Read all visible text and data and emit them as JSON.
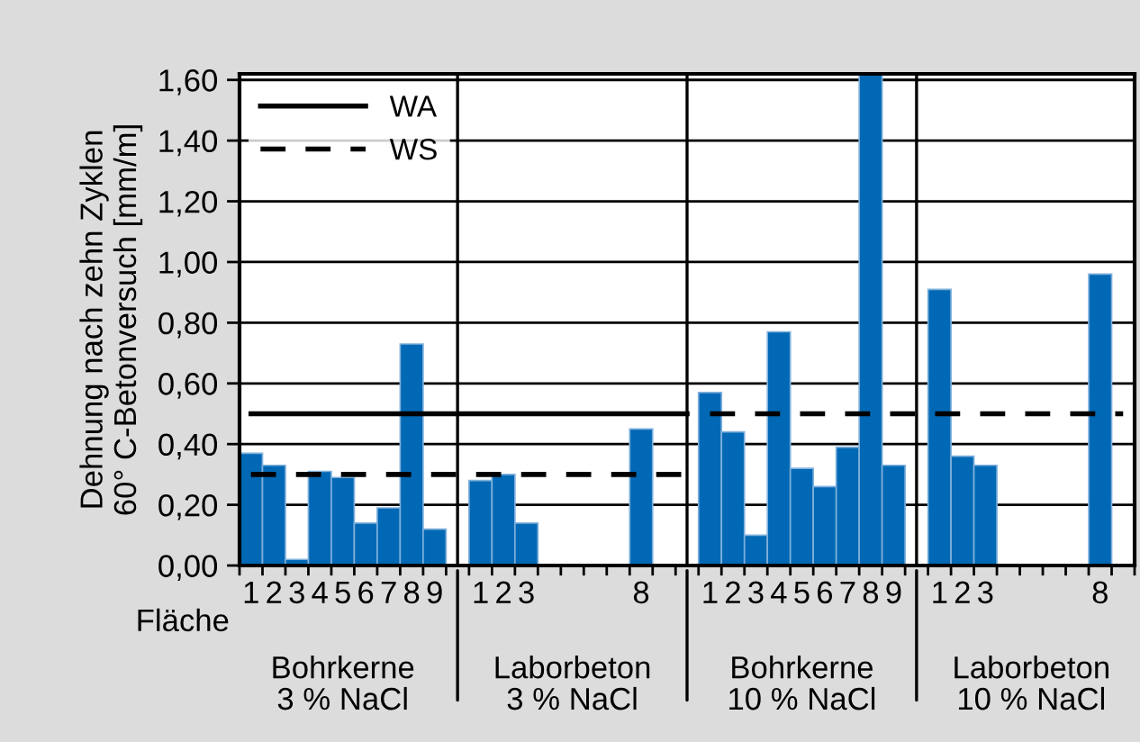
{
  "chart_data": {
    "type": "bar",
    "ylabel": "Dehnung nach zehn Zyklen\n60° C-Betonversuch [mm/m]",
    "categories": [
      "1",
      "2",
      "3",
      "4",
      "5",
      "6",
      "7",
      "8",
      "9",
      null,
      "1",
      "2",
      "3",
      null,
      null,
      null,
      null,
      "8",
      null,
      null,
      "1",
      "2",
      "3",
      "4",
      "5",
      "6",
      "7",
      "8",
      "9",
      null,
      "1",
      "2",
      "3",
      null,
      null,
      null,
      null,
      "8",
      null
    ],
    "series": [
      {
        "color": "#0068b4",
        "values": [
          0.37,
          0.33,
          0.02,
          0.31,
          0.29,
          0.14,
          0.19,
          0.73,
          0.12,
          null,
          0.28,
          0.3,
          0.14,
          null,
          null,
          null,
          null,
          0.45,
          null,
          null,
          0.57,
          0.44,
          0.1,
          0.77,
          0.32,
          0.26,
          0.39,
          1.62,
          0.33,
          null,
          0.91,
          0.36,
          0.33,
          null,
          null,
          null,
          null,
          0.96,
          null
        ]
      },
      {
        "type": "line",
        "name": "WA",
        "color": "#000000",
        "line_style": "solid",
        "values": [
          0.5,
          0.5,
          0.5,
          0.5,
          0.5,
          0.5,
          0.5,
          0.5,
          0.5,
          0.5,
          0.5,
          0.5,
          0.5,
          0.5,
          0.5,
          0.5,
          0.5,
          0.5,
          0.5,
          0.5,
          null,
          null,
          null,
          null,
          null,
          null,
          null,
          null,
          null,
          null,
          null,
          null,
          null,
          null,
          null,
          null,
          null,
          null,
          null
        ]
      },
      {
        "type": "line",
        "name": "WS",
        "color": "#000000",
        "line_style": "dashed",
        "values": [
          0.3,
          0.3,
          0.3,
          0.3,
          0.3,
          0.3,
          0.3,
          0.3,
          0.3,
          0.3,
          0.3,
          0.3,
          0.3,
          0.3,
          0.3,
          0.3,
          0.3,
          0.3,
          0.3,
          0.3,
          0.5,
          0.5,
          0.5,
          0.5,
          0.5,
          0.5,
          0.5,
          0.5,
          0.5,
          0.5,
          0.5,
          0.5,
          0.5,
          0.5,
          0.5,
          0.5,
          0.5,
          0.5,
          0.5
        ]
      }
    ],
    "ylim": [
      0,
      1.62
    ],
    "yticks": [
      {
        "value": 0,
        "label": "0,00"
      },
      {
        "value": 0.2,
        "label": "0,20"
      },
      {
        "value": 0.4,
        "label": "0,40"
      },
      {
        "value": 0.6,
        "label": "0,60"
      },
      {
        "value": 0.8,
        "label": "0,80"
      },
      {
        "value": 1.0,
        "label": "1,00"
      },
      {
        "value": 1.2,
        "label": "1,20"
      },
      {
        "value": 1.4,
        "label": "1,40"
      },
      {
        "value": 1.6,
        "label": "1,60"
      }
    ],
    "grid": "y",
    "legend": "top left",
    "annotations": [
      "Fläche",
      "Bohrkerne\n3 % NaCl",
      "Laborbeton\n3 % NaCl",
      "Bohrkerne\n10 % NaCl",
      "Laborbeton\n10 % NaCl"
    ]
  }
}
